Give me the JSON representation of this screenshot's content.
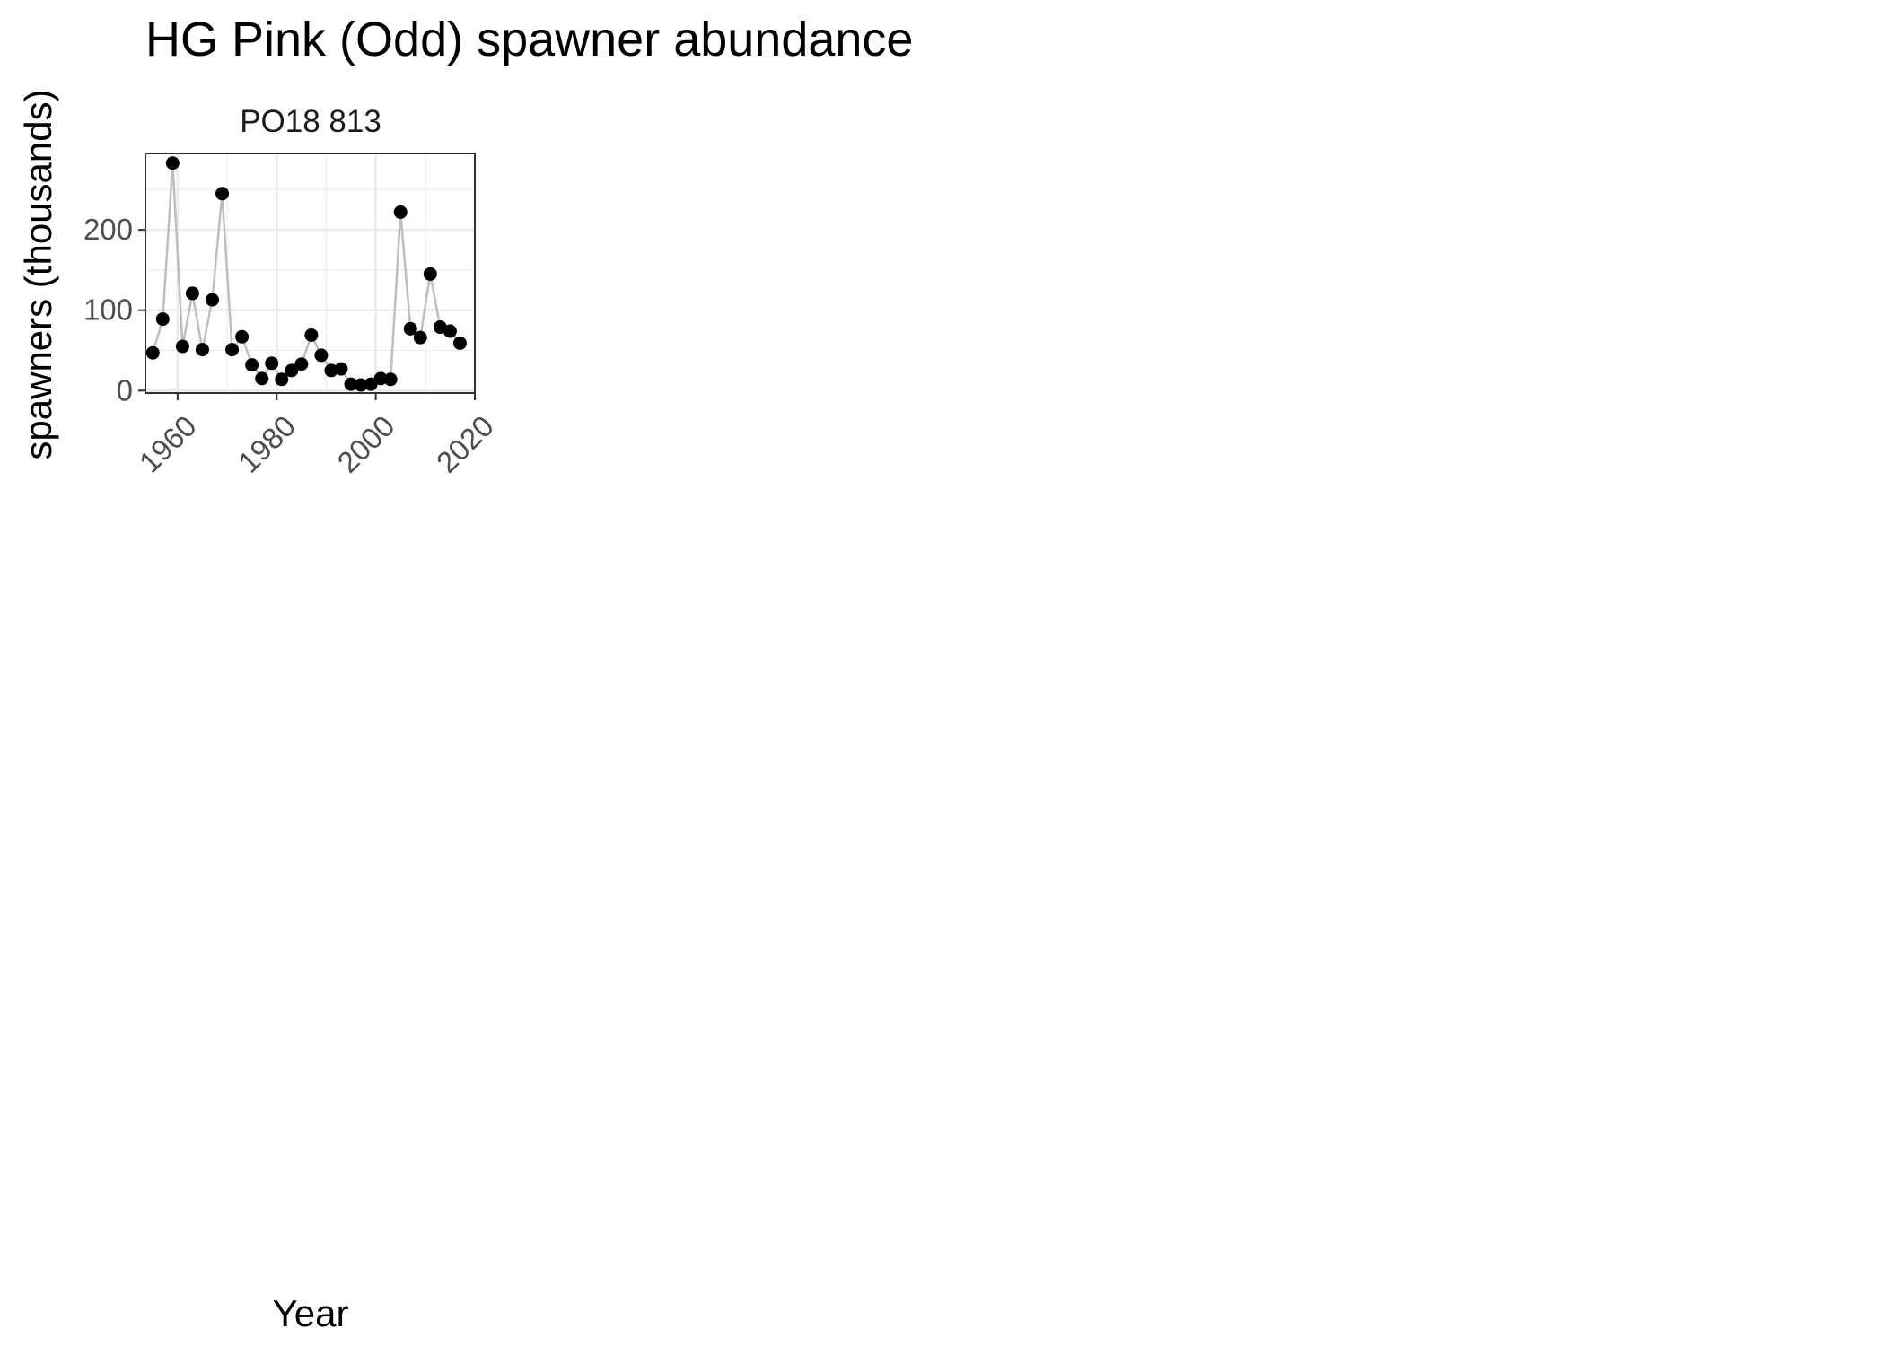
{
  "chart_data": {
    "type": "line",
    "title": "HG Pink (Odd) spawner abundance",
    "xlabel": "Year",
    "ylabel": "spawners (thousands)",
    "panels": [
      {
        "label": "PO18 813",
        "x": [
          1955,
          1957,
          1959,
          1961,
          1963,
          1965,
          1967,
          1969,
          1971,
          1973,
          1975,
          1977,
          1979,
          1981,
          1983,
          1985,
          1987,
          1989,
          1991,
          1993,
          1995,
          1997,
          1999,
          2001,
          2003,
          2005,
          2007,
          2009,
          2011,
          2013,
          2015,
          2017
        ],
        "y": [
          47,
          89,
          283,
          55,
          121,
          51,
          113,
          245,
          51,
          67,
          32,
          15,
          34,
          14,
          25,
          33,
          69,
          44,
          25,
          27,
          8,
          7,
          8,
          15,
          14,
          222,
          77,
          66,
          145,
          79,
          74,
          59
        ]
      }
    ],
    "xlim": [
      1953.5,
      2020
    ],
    "ylim": [
      -3,
      295
    ],
    "x_ticks": [
      "1960",
      "1980",
      "2000",
      "2020"
    ],
    "y_ticks": [
      "0",
      "100",
      "200"
    ],
    "grid": true,
    "line_color": "#bebebe",
    "point_color": "#000000",
    "panel_border_color": "#333333",
    "grid_color": "#ebebeb"
  }
}
